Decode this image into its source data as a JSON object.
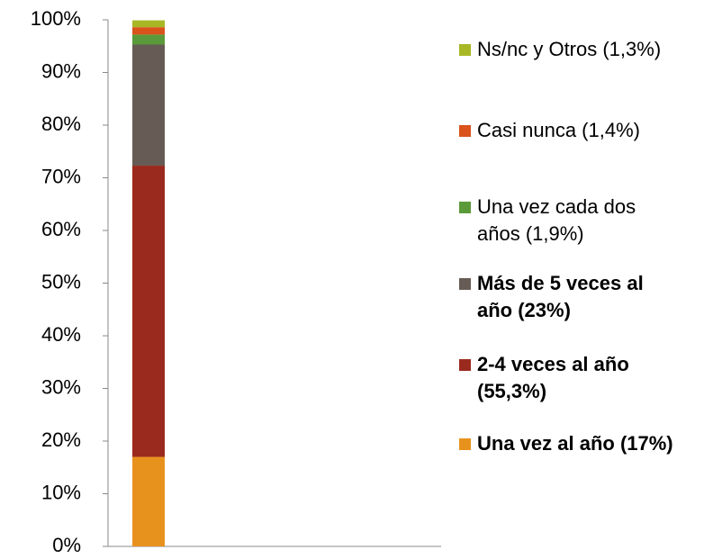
{
  "chart_data": {
    "type": "stacked_bar",
    "categories": [
      null
    ],
    "series": [
      {
        "name": "Una vez al año (17%)",
        "color": "#e8921e",
        "values": [
          17
        ],
        "bold": true
      },
      {
        "name": "2-4 veces al año (55,3%)",
        "color": "#9b2a1e",
        "values": [
          55.3
        ],
        "bold": true
      },
      {
        "name": "Más de 5 veces al año (23%)",
        "color": "#665c55",
        "values": [
          23
        ],
        "bold": true
      },
      {
        "name": "Una vez cada dos años (1,9%)",
        "color": "#5b9a3a",
        "values": [
          1.9
        ],
        "bold": false
      },
      {
        "name": "Casi nunca (1,4%)",
        "color": "#d9531b",
        "values": [
          1.4
        ],
        "bold": false
      },
      {
        "name": "Ns/nc y Otros (1,3%)",
        "color": "#a8b825",
        "values": [
          1.3
        ],
        "bold": false
      }
    ],
    "ylim": [
      0,
      100
    ],
    "yticks": [
      {
        "value": 0,
        "label": "0%"
      },
      {
        "value": 10,
        "label": "10%"
      },
      {
        "value": 20,
        "label": "20%"
      },
      {
        "value": 30,
        "label": "30%"
      },
      {
        "value": 40,
        "label": "40%"
      },
      {
        "value": 50,
        "label": "50%"
      },
      {
        "value": 60,
        "label": "60%"
      },
      {
        "value": 70,
        "label": "70%"
      },
      {
        "value": 80,
        "label": "80%"
      },
      {
        "value": 90,
        "label": "90%"
      },
      {
        "value": 100,
        "label": "100%"
      }
    ],
    "legend": "right"
  }
}
